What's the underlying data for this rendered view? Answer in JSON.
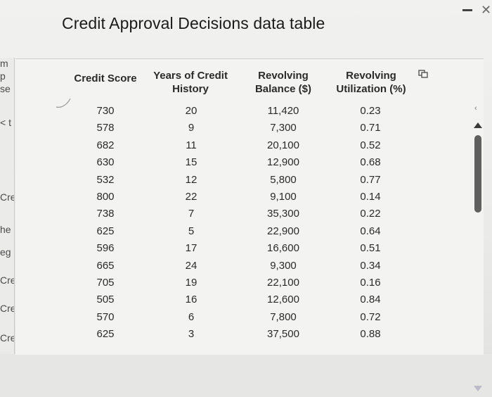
{
  "title": "Credit Approval Decisions data table",
  "left_fragments": [
    "m",
    "p",
    "se",
    "< t",
    "Cre",
    "he",
    "eg",
    "Cre",
    "Cre",
    "Cre"
  ],
  "table": {
    "headers": {
      "credit_score": "Credit Score",
      "years_line1": "Years of Credit",
      "years_line2": "History",
      "balance_line1": "Revolving",
      "balance_line2": "Balance ($)",
      "util_line1": "Revolving",
      "util_line2": "Utilization (%)"
    },
    "rows": [
      {
        "score": "730",
        "years": "20",
        "balance": "11,420",
        "util": "0.23"
      },
      {
        "score": "578",
        "years": "9",
        "balance": "7,300",
        "util": "0.71"
      },
      {
        "score": "682",
        "years": "11",
        "balance": "20,100",
        "util": "0.52"
      },
      {
        "score": "630",
        "years": "15",
        "balance": "12,900",
        "util": "0.68"
      },
      {
        "score": "532",
        "years": "12",
        "balance": "5,800",
        "util": "0.77"
      },
      {
        "score": "800",
        "years": "22",
        "balance": "9,100",
        "util": "0.14"
      },
      {
        "score": "738",
        "years": "7",
        "balance": "35,300",
        "util": "0.22"
      },
      {
        "score": "625",
        "years": "5",
        "balance": "22,900",
        "util": "0.64"
      },
      {
        "score": "596",
        "years": "17",
        "balance": "16,600",
        "util": "0.51"
      },
      {
        "score": "665",
        "years": "24",
        "balance": "9,300",
        "util": "0.34"
      },
      {
        "score": "705",
        "years": "19",
        "balance": "22,100",
        "util": "0.16"
      },
      {
        "score": "505",
        "years": "16",
        "balance": "12,600",
        "util": "0.84"
      },
      {
        "score": "570",
        "years": "6",
        "balance": "7,800",
        "util": "0.72"
      },
      {
        "score": "625",
        "years": "3",
        "balance": "37,500",
        "util": "0.88"
      }
    ]
  },
  "icons": {
    "copy": "copy-icon",
    "minimize": "minimize-icon",
    "close": "close-icon",
    "scroll_up": "arrow-up-icon",
    "scroll_down": "arrow-down-icon"
  },
  "colors": {
    "scroll_thumb": "#5f5f5f",
    "scroll_down_arrow": "#b9b9c9"
  }
}
